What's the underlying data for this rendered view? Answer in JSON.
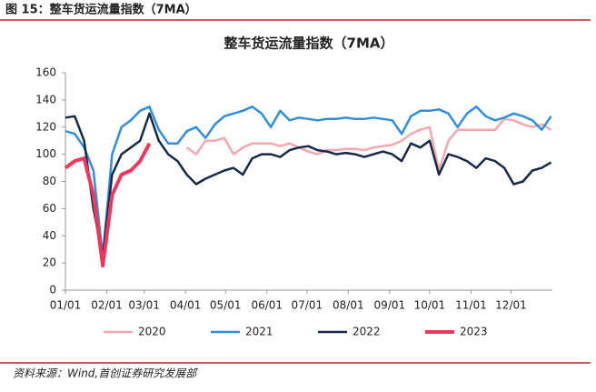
{
  "figure_label": "图 15：整车货运流量指数（7MA）",
  "source": "资料来源：Wind,首创证券研究发展部",
  "chart_data": {
    "type": "line",
    "title": "整车货运流量指数（7MA）",
    "x": [
      0,
      7,
      14,
      21,
      28,
      35,
      42,
      49,
      56,
      63,
      70,
      77,
      84,
      91,
      98,
      105,
      112,
      119,
      126,
      133,
      140,
      147,
      154,
      161,
      168,
      175,
      182,
      189,
      196,
      203,
      210,
      217,
      224,
      231,
      238,
      245,
      252,
      259,
      266,
      273,
      280,
      287,
      294,
      301,
      308,
      315,
      322,
      329,
      336,
      343,
      350,
      357,
      364
    ],
    "xlim": [
      0,
      365
    ],
    "xticks": [
      {
        "value": 0,
        "label": "01/01"
      },
      {
        "value": 31,
        "label": "02/01"
      },
      {
        "value": 59,
        "label": "03/01"
      },
      {
        "value": 90,
        "label": "04/01"
      },
      {
        "value": 120,
        "label": "05/01"
      },
      {
        "value": 151,
        "label": "06/01"
      },
      {
        "value": 181,
        "label": "07/01"
      },
      {
        "value": 212,
        "label": "08/01"
      },
      {
        "value": 243,
        "label": "09/01"
      },
      {
        "value": 273,
        "label": "10/01"
      },
      {
        "value": 304,
        "label": "11/01"
      },
      {
        "value": 334,
        "label": "12/01"
      }
    ],
    "ylim": [
      0,
      160
    ],
    "yticks": [
      0,
      20,
      40,
      60,
      80,
      100,
      120,
      140,
      160
    ],
    "grid": false,
    "legend": "bottom",
    "series": [
      {
        "name": "2020",
        "color": "#f4a7ad",
        "width": 2.5,
        "values": [
          null,
          null,
          null,
          null,
          null,
          null,
          null,
          null,
          null,
          null,
          null,
          null,
          null,
          105,
          100,
          110,
          110,
          112,
          100,
          105,
          108,
          108,
          108,
          106,
          108,
          105,
          102,
          100,
          103,
          103,
          104,
          104,
          103,
          105,
          106,
          107,
          110,
          115,
          118,
          120,
          88,
          110,
          118,
          118,
          118,
          118,
          118,
          126,
          125,
          122,
          120,
          122,
          118
        ]
      },
      {
        "name": "2021",
        "color": "#2e8fe0",
        "width": 2.5,
        "values": [
          117,
          115,
          105,
          88,
          25,
          100,
          120,
          125,
          132,
          135,
          118,
          108,
          108,
          117,
          120,
          112,
          122,
          128,
          130,
          132,
          135,
          130,
          120,
          132,
          125,
          127,
          126,
          125,
          126,
          126,
          127,
          126,
          126,
          127,
          126,
          125,
          115,
          128,
          132,
          132,
          133,
          130,
          120,
          130,
          135,
          128,
          125,
          127,
          130,
          128,
          125,
          118,
          128
        ]
      },
      {
        "name": "2022",
        "color": "#15294a",
        "width": 2.5,
        "values": [
          127,
          128,
          110,
          60,
          25,
          85,
          100,
          105,
          110,
          130,
          110,
          100,
          95,
          85,
          78,
          82,
          85,
          88,
          90,
          85,
          97,
          100,
          100,
          98,
          103,
          105,
          106,
          103,
          102,
          100,
          101,
          100,
          98,
          100,
          102,
          100,
          95,
          108,
          105,
          110,
          85,
          100,
          98,
          95,
          90,
          97,
          95,
          90,
          78,
          80,
          88,
          90,
          94
        ]
      },
      {
        "name": "2023",
        "color": "#f0365a",
        "width": 4,
        "values": [
          90,
          95,
          97,
          70,
          18,
          70,
          85,
          88,
          95,
          108,
          null,
          null,
          null,
          null,
          null,
          null,
          null,
          null,
          null,
          null,
          null,
          null,
          null,
          null,
          null,
          null,
          null,
          null,
          null,
          null,
          null,
          null,
          null,
          null,
          null,
          null,
          null,
          null,
          null,
          null,
          null,
          null,
          null,
          null,
          null,
          null,
          null,
          null,
          null,
          null,
          null,
          null,
          null
        ]
      }
    ]
  }
}
